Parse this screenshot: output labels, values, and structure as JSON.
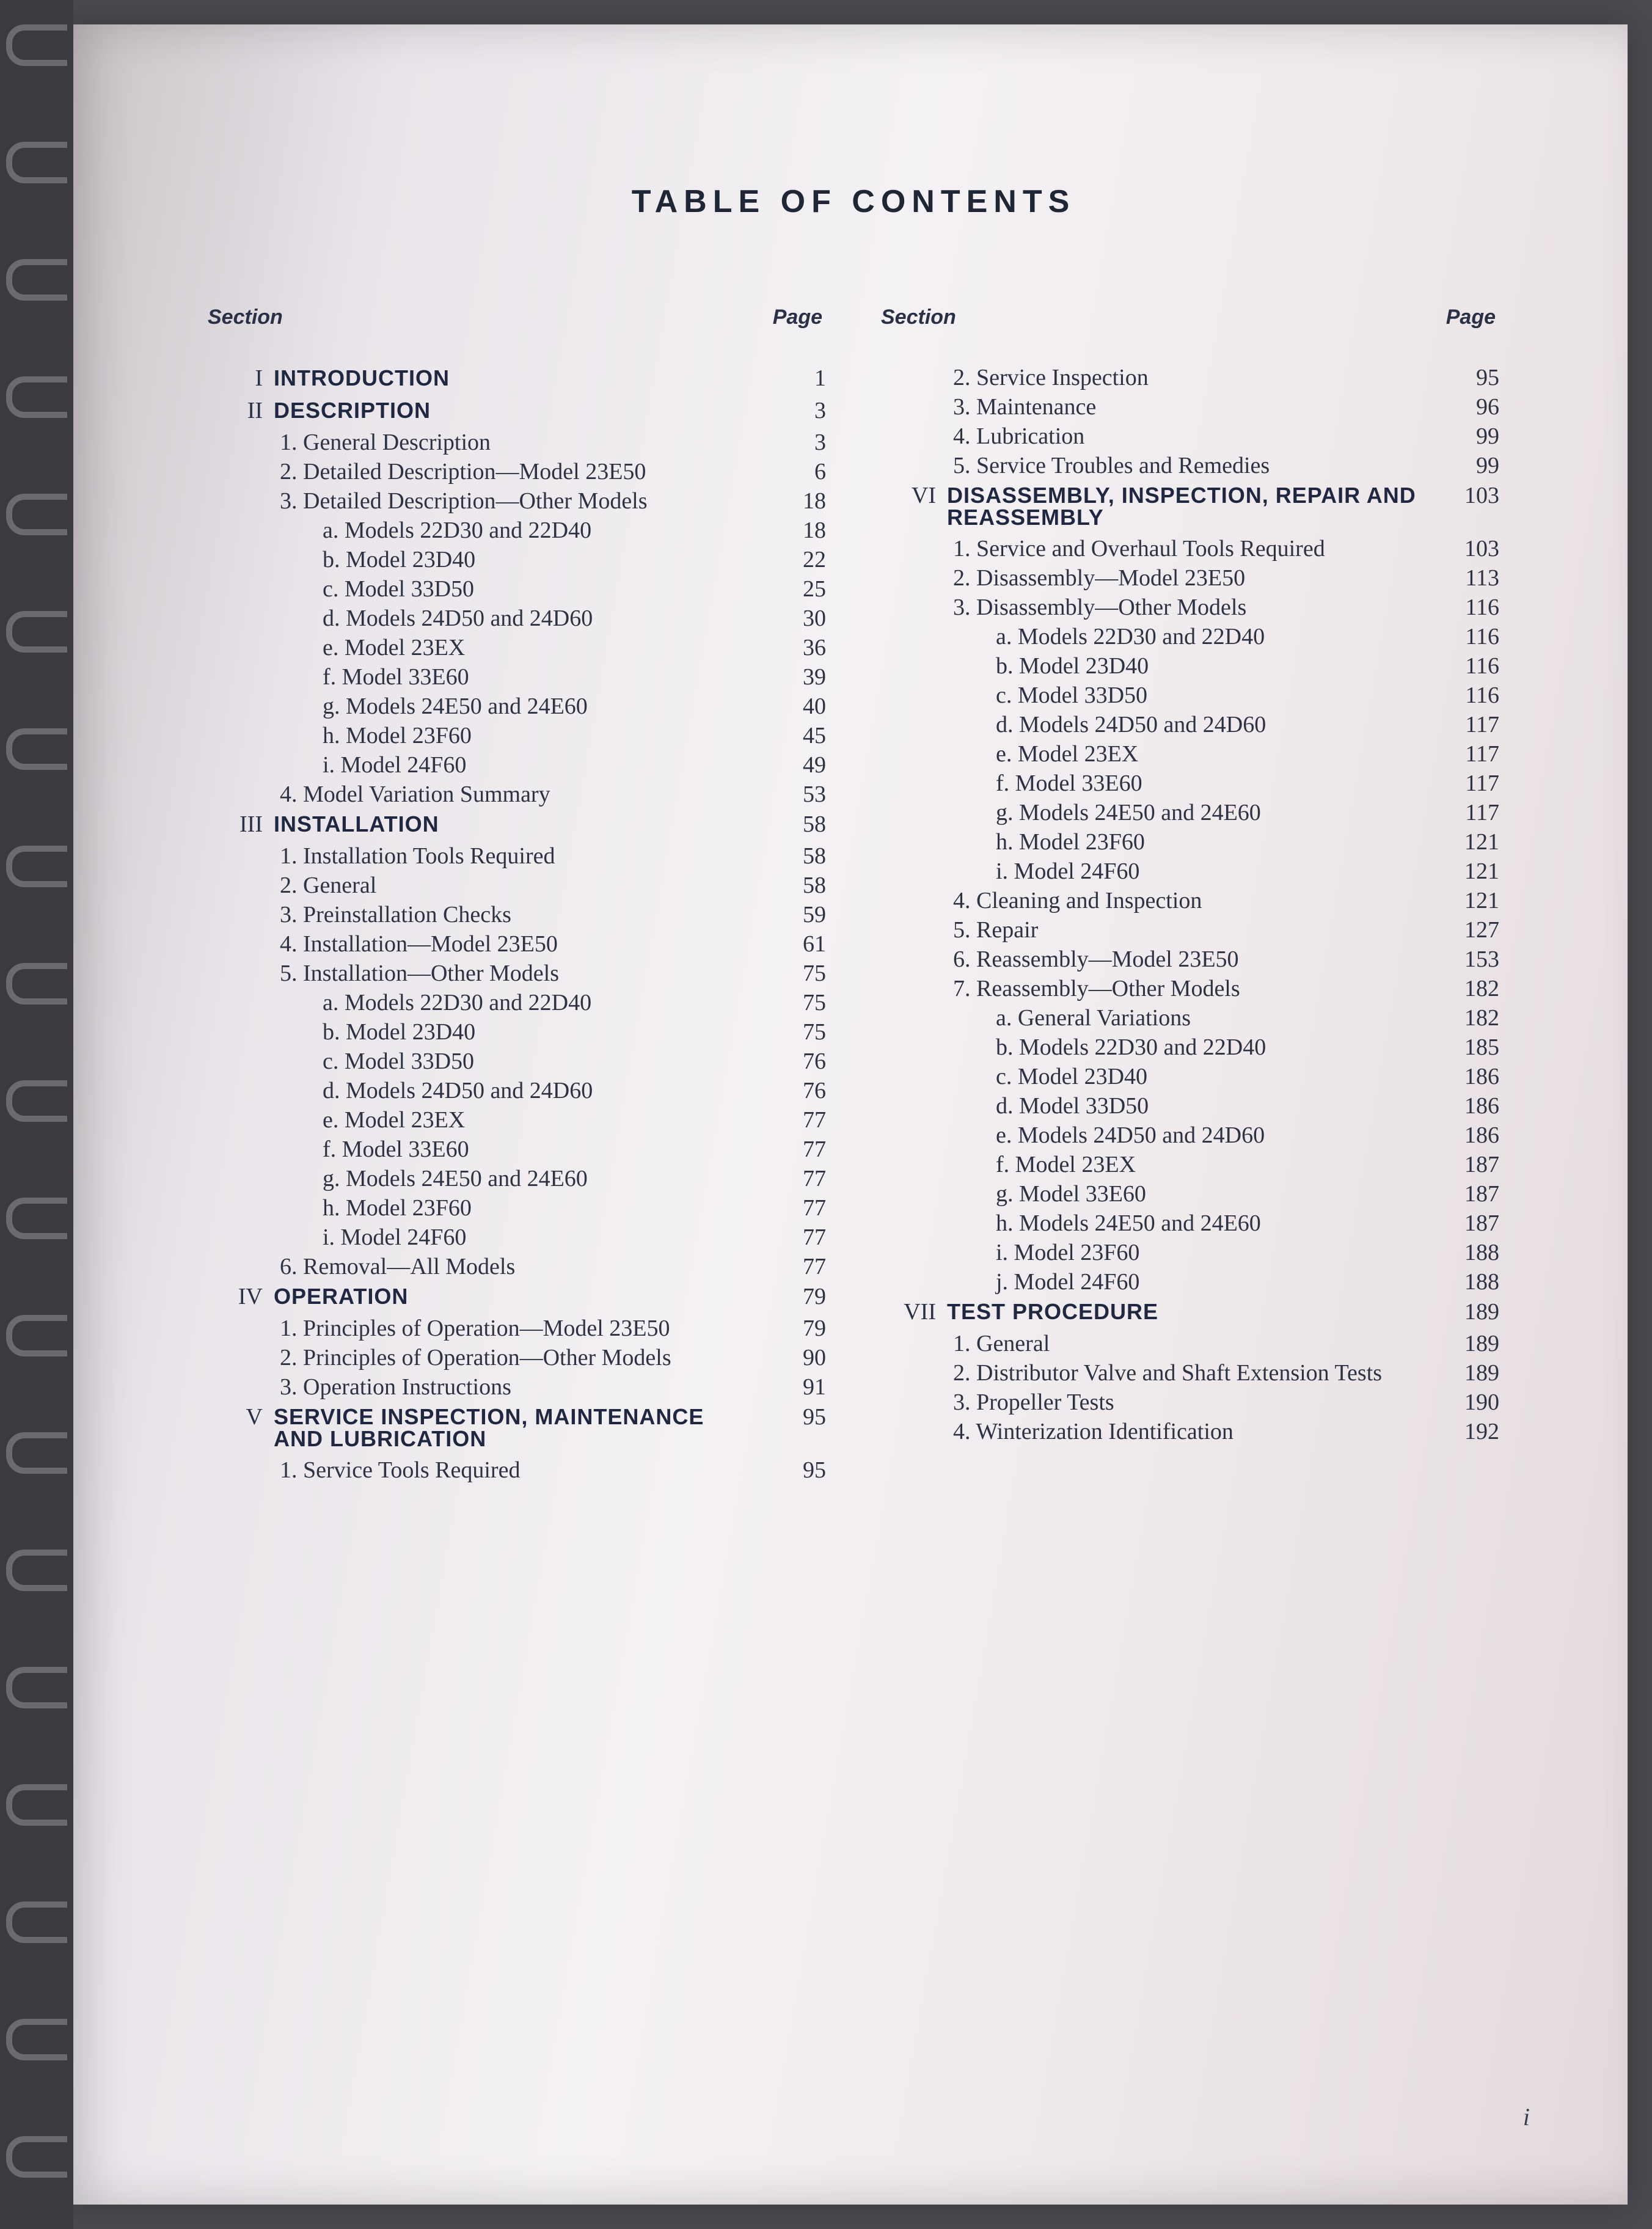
{
  "title": "TABLE OF CONTENTS",
  "header_section_label": "Section",
  "header_page_label": "Page",
  "folio": "i",
  "spiral_ring_count": 19,
  "columns": {
    "left": [
      {
        "type": "section",
        "roman": "I",
        "label": "INTRODUCTION",
        "page": "1"
      },
      {
        "type": "section",
        "roman": "II",
        "label": "DESCRIPTION",
        "page": "3"
      },
      {
        "type": "item",
        "indent": 1,
        "label": "1. General Description",
        "page": "3"
      },
      {
        "type": "item",
        "indent": 1,
        "label": "2. Detailed Description—Model 23E50",
        "page": "6"
      },
      {
        "type": "item",
        "indent": 1,
        "label": "3. Detailed Description—Other Models",
        "page": "18"
      },
      {
        "type": "item",
        "indent": 2,
        "label": "a. Models 22D30 and 22D40",
        "page": "18"
      },
      {
        "type": "item",
        "indent": 2,
        "label": "b. Model 23D40",
        "page": "22"
      },
      {
        "type": "item",
        "indent": 2,
        "label": "c. Model 33D50",
        "page": "25"
      },
      {
        "type": "item",
        "indent": 2,
        "label": "d. Models 24D50 and 24D60",
        "page": "30"
      },
      {
        "type": "item",
        "indent": 2,
        "label": "e. Model 23EX",
        "page": "36"
      },
      {
        "type": "item",
        "indent": 2,
        "label": "f. Model 33E60",
        "page": "39"
      },
      {
        "type": "item",
        "indent": 2,
        "label": "g. Models 24E50 and 24E60",
        "page": "40"
      },
      {
        "type": "item",
        "indent": 2,
        "label": "h. Model 23F60",
        "page": "45"
      },
      {
        "type": "item",
        "indent": 2,
        "label": "i. Model 24F60",
        "page": "49"
      },
      {
        "type": "item",
        "indent": 1,
        "label": "4. Model Variation Summary",
        "page": "53"
      },
      {
        "type": "section",
        "roman": "III",
        "label": "INSTALLATION",
        "page": "58"
      },
      {
        "type": "item",
        "indent": 1,
        "label": "1. Installation Tools Required",
        "page": "58"
      },
      {
        "type": "item",
        "indent": 1,
        "label": "2. General",
        "page": "58"
      },
      {
        "type": "item",
        "indent": 1,
        "label": "3. Preinstallation Checks",
        "page": "59"
      },
      {
        "type": "item",
        "indent": 1,
        "label": "4. Installation—Model 23E50",
        "page": "61"
      },
      {
        "type": "item",
        "indent": 1,
        "label": "5. Installation—Other Models",
        "page": "75"
      },
      {
        "type": "item",
        "indent": 2,
        "label": "a. Models 22D30 and 22D40",
        "page": "75"
      },
      {
        "type": "item",
        "indent": 2,
        "label": "b. Model 23D40",
        "page": "75"
      },
      {
        "type": "item",
        "indent": 2,
        "label": "c. Model 33D50",
        "page": "76"
      },
      {
        "type": "item",
        "indent": 2,
        "label": "d. Models 24D50 and 24D60",
        "page": "76"
      },
      {
        "type": "item",
        "indent": 2,
        "label": "e. Model 23EX",
        "page": "77"
      },
      {
        "type": "item",
        "indent": 2,
        "label": "f. Model 33E60",
        "page": "77"
      },
      {
        "type": "item",
        "indent": 2,
        "label": "g. Models 24E50 and 24E60",
        "page": "77"
      },
      {
        "type": "item",
        "indent": 2,
        "label": "h. Model 23F60",
        "page": "77"
      },
      {
        "type": "item",
        "indent": 2,
        "label": "i. Model 24F60",
        "page": "77"
      },
      {
        "type": "item",
        "indent": 1,
        "label": "6. Removal—All Models",
        "page": "77"
      },
      {
        "type": "section",
        "roman": "IV",
        "label": "OPERATION",
        "page": "79"
      },
      {
        "type": "item",
        "indent": 1,
        "label": "1. Principles of Operation—Model 23E50",
        "page": "79"
      },
      {
        "type": "item",
        "indent": 1,
        "label": "2. Principles of Operation—Other Models",
        "page": "90"
      },
      {
        "type": "item",
        "indent": 1,
        "label": "3. Operation Instructions",
        "page": "91"
      },
      {
        "type": "section",
        "roman": "V",
        "label": "SERVICE INSPECTION, MAINTENANCE AND LUBRICATION",
        "page": "95"
      },
      {
        "type": "item",
        "indent": 1,
        "label": "1. Service Tools Required",
        "page": "95"
      }
    ],
    "right": [
      {
        "type": "item",
        "indent": 1,
        "label": "2. Service Inspection",
        "page": "95"
      },
      {
        "type": "item",
        "indent": 1,
        "label": "3. Maintenance",
        "page": "96"
      },
      {
        "type": "item",
        "indent": 1,
        "label": "4. Lubrication",
        "page": "99"
      },
      {
        "type": "item",
        "indent": 1,
        "label": "5. Service Troubles and Remedies",
        "page": "99"
      },
      {
        "type": "section",
        "roman": "VI",
        "label": "DISASSEMBLY, INSPECTION, REPAIR AND REASSEMBLY",
        "page": "103"
      },
      {
        "type": "item",
        "indent": 1,
        "label": "1. Service and Overhaul Tools Required",
        "page": "103"
      },
      {
        "type": "item",
        "indent": 1,
        "label": "2. Disassembly—Model 23E50",
        "page": "113"
      },
      {
        "type": "item",
        "indent": 1,
        "label": "3. Disassembly—Other Models",
        "page": "116"
      },
      {
        "type": "item",
        "indent": 2,
        "label": "a. Models 22D30 and 22D40",
        "page": "116"
      },
      {
        "type": "item",
        "indent": 2,
        "label": "b. Model 23D40",
        "page": "116"
      },
      {
        "type": "item",
        "indent": 2,
        "label": "c. Model 33D50",
        "page": "116"
      },
      {
        "type": "item",
        "indent": 2,
        "label": "d. Models 24D50 and 24D60",
        "page": "117"
      },
      {
        "type": "item",
        "indent": 2,
        "label": "e. Model 23EX",
        "page": "117"
      },
      {
        "type": "item",
        "indent": 2,
        "label": "f. Model 33E60",
        "page": "117"
      },
      {
        "type": "item",
        "indent": 2,
        "label": "g. Models 24E50 and 24E60",
        "page": "117"
      },
      {
        "type": "item",
        "indent": 2,
        "label": "h. Model 23F60",
        "page": "121"
      },
      {
        "type": "item",
        "indent": 2,
        "label": "i. Model 24F60",
        "page": "121"
      },
      {
        "type": "item",
        "indent": 1,
        "label": "4. Cleaning and Inspection",
        "page": "121"
      },
      {
        "type": "item",
        "indent": 1,
        "label": "5. Repair",
        "page": "127"
      },
      {
        "type": "item",
        "indent": 1,
        "label": "6. Reassembly—Model 23E50",
        "page": "153"
      },
      {
        "type": "item",
        "indent": 1,
        "label": "7. Reassembly—Other Models",
        "page": "182"
      },
      {
        "type": "item",
        "indent": 2,
        "label": "a. General Variations",
        "page": "182"
      },
      {
        "type": "item",
        "indent": 2,
        "label": "b. Models 22D30 and 22D40",
        "page": "185"
      },
      {
        "type": "item",
        "indent": 2,
        "label": "c. Model 23D40",
        "page": "186"
      },
      {
        "type": "item",
        "indent": 2,
        "label": "d. Model 33D50",
        "page": "186"
      },
      {
        "type": "item",
        "indent": 2,
        "label": "e. Models 24D50 and 24D60",
        "page": "186"
      },
      {
        "type": "item",
        "indent": 2,
        "label": "f. Model 23EX",
        "page": "187"
      },
      {
        "type": "item",
        "indent": 2,
        "label": "g. Model 33E60",
        "page": "187"
      },
      {
        "type": "item",
        "indent": 2,
        "label": "h. Models 24E50 and 24E60",
        "page": "187"
      },
      {
        "type": "item",
        "indent": 2,
        "label": "i. Model 23F60",
        "page": "188"
      },
      {
        "type": "item",
        "indent": 2,
        "label": "j. Model 24F60",
        "page": "188"
      },
      {
        "type": "section",
        "roman": "VII",
        "label": "TEST PROCEDURE",
        "page": "189"
      },
      {
        "type": "item",
        "indent": 1,
        "label": "1. General",
        "page": "189"
      },
      {
        "type": "item",
        "indent": 1,
        "label": "2. Distributor Valve and Shaft Extension Tests",
        "page": "189"
      },
      {
        "type": "item",
        "indent": 1,
        "label": "3. Propeller Tests",
        "page": "190"
      },
      {
        "type": "item",
        "indent": 1,
        "label": "4. Winterization Identification",
        "page": "192"
      }
    ]
  }
}
